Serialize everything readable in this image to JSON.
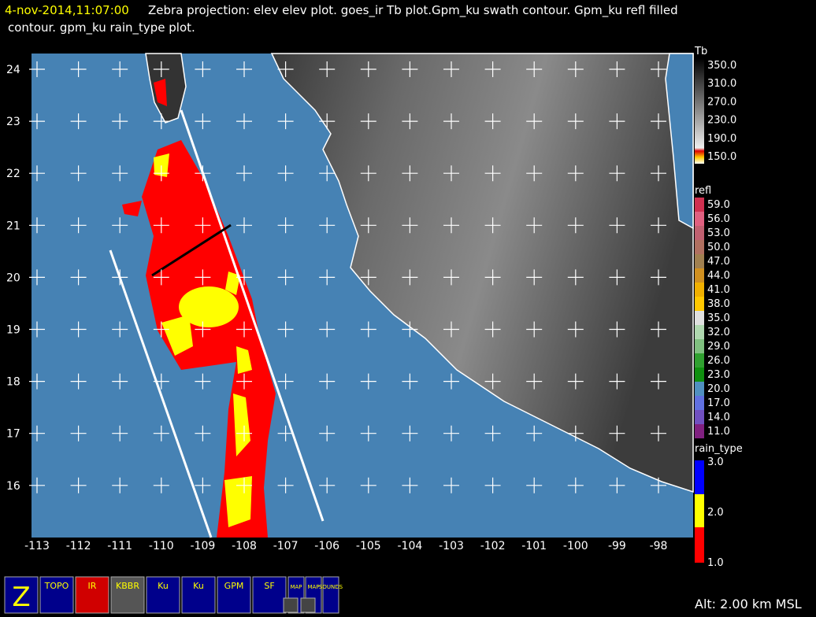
{
  "header": {
    "time": "4-nov-2014,11:07:00",
    "title_line1": "Zebra projection: elev elev  plot.  goes_ir Tb plot.Gpm_ku swath contour.  Gpm_ku refl filled",
    "title_line2": "contour.  gpm_ku rain_type  plot."
  },
  "map": {
    "lat_ticks": [
      24,
      23,
      22,
      21,
      20,
      19,
      18,
      17,
      16
    ],
    "lon_ticks": [
      -113,
      -112,
      -111,
      -110,
      -109,
      -108,
      -107,
      -106,
      -105,
      -104,
      -103,
      -102,
      -101,
      -100,
      -99,
      -98
    ]
  },
  "colorbars": [
    {
      "title": "Tb",
      "labels": [
        "350.0",
        "310.0",
        "270.0",
        "230.0",
        "190.0",
        "150.0"
      ]
    },
    {
      "title": "refl",
      "labels": [
        "59.0",
        "56.0",
        "53.0",
        "50.0",
        "47.0",
        "44.0",
        "41.0",
        "38.0",
        "35.0",
        "32.0",
        "29.0",
        "26.0",
        "23.0",
        "20.0",
        "17.0",
        "14.0",
        "11.0"
      ]
    },
    {
      "title": "rain_type",
      "labels": [
        "3.0",
        "2.0",
        "1.0"
      ]
    }
  ],
  "toolbar": {
    "icons": [
      "Z",
      "TOPO",
      "IR",
      "KBBR",
      "Ku",
      "Ku",
      "GPM",
      "SF",
      "MAP",
      "MAP",
      "SOUNDS"
    ]
  },
  "status": "Alt: 2.00 km MSL"
}
